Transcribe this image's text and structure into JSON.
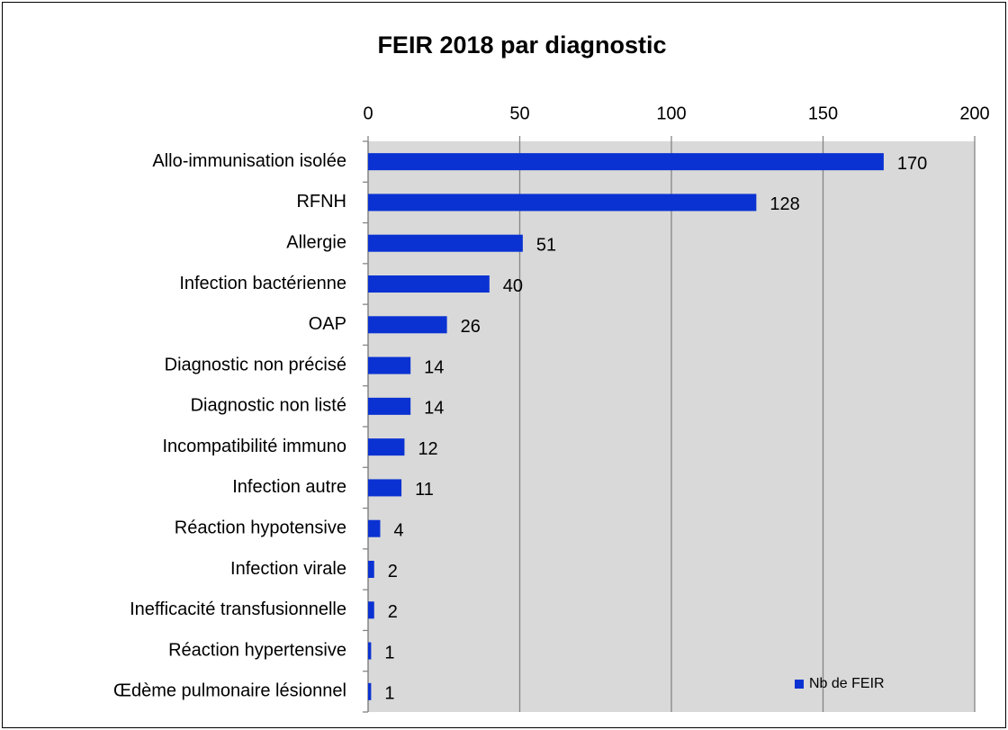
{
  "chart_data": {
    "type": "bar",
    "orientation": "horizontal",
    "title": "FEIR 2018 par diagnostic",
    "categories": [
      "Allo-immunisation isolée",
      "RFNH",
      "Allergie",
      "Infection bactérienne",
      "OAP",
      "Diagnostic non précisé",
      "Diagnostic non listé",
      "Incompatibilité immuno",
      "Infection autre",
      "Réaction hypotensive",
      "Infection virale",
      "Inefficacité transfusionnelle",
      "Réaction hypertensive",
      "Œdème pulmonaire lésionnel"
    ],
    "series": [
      {
        "name": "Nb de FEIR",
        "color": "#0a32d2",
        "values": [
          170,
          128,
          51,
          40,
          26,
          14,
          14,
          12,
          11,
          4,
          2,
          2,
          1,
          1
        ]
      }
    ],
    "xlim": [
      0,
      200
    ],
    "xticks": [
      0,
      50,
      100,
      150,
      200
    ],
    "grid": true,
    "legend": "lower right"
  }
}
